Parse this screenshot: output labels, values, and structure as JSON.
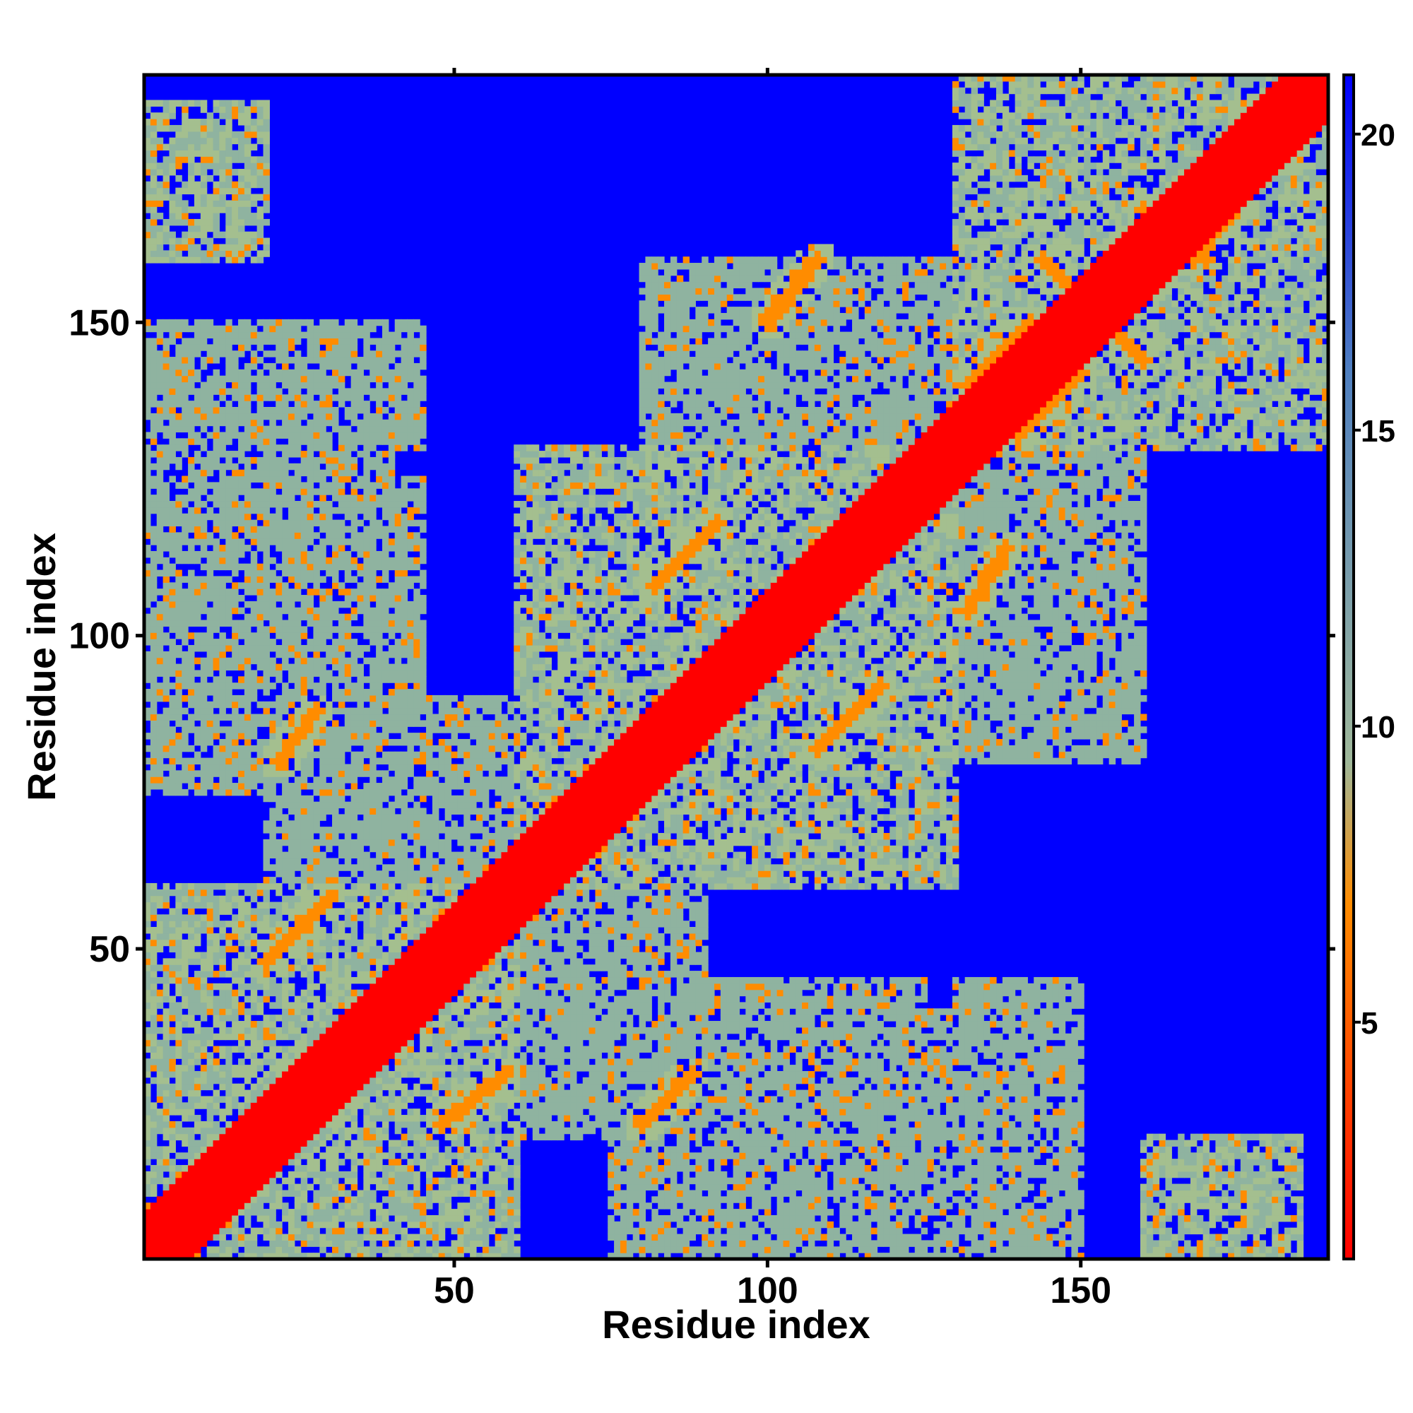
{
  "chart_data": {
    "type": "heatmap",
    "title": "",
    "xlabel": "Residue index",
    "ylabel": "Residue index",
    "x_range": [
      1,
      189
    ],
    "y_range": [
      1,
      189
    ],
    "x_ticks": [
      50,
      100,
      150
    ],
    "y_ticks": [
      50,
      100,
      150
    ],
    "colorbar": {
      "range": [
        1,
        21
      ],
      "ticks": [
        5,
        10,
        15,
        20
      ],
      "colors": [
        "#ff0000",
        "#ff8c00",
        "#9fb89a",
        "#4f7fbf",
        "#0000ff"
      ]
    },
    "cell_color_map": [
      {
        "max": 3,
        "color": "#ff0000"
      },
      {
        "max": 8,
        "color": "#ff8c00"
      },
      {
        "max": 12.5,
        "color": "#a4bf8f"
      },
      {
        "max": 14.5,
        "color": "#8fb3a0"
      },
      {
        "max": 21,
        "color": "#0000ff"
      }
    ],
    "domains": [
      [
        1,
        65
      ],
      [
        66,
        128
      ],
      [
        129,
        189
      ]
    ],
    "regions": [
      {
        "x": [
          1,
          60
        ],
        "y": [
          1,
          60
        ],
        "level": 2
      },
      {
        "x": [
          60,
          130
        ],
        "y": [
          60,
          130
        ],
        "level": 2
      },
      {
        "x": [
          130,
          189
        ],
        "y": [
          130,
          189
        ],
        "level": 2
      },
      {
        "x": [
          1,
          45
        ],
        "y": [
          75,
          125
        ],
        "level": 3
      },
      {
        "x": [
          1,
          45
        ],
        "y": [
          130,
          150
        ],
        "level": 3
      },
      {
        "x": [
          1,
          20
        ],
        "y": [
          165,
          185
        ],
        "level": 2
      },
      {
        "x": [
          50,
          90
        ],
        "y": [
          20,
          70
        ],
        "level": 3
      },
      {
        "x": [
          85,
          130
        ],
        "y": [
          60,
          100
        ],
        "level": 3
      },
      {
        "x": [
          100,
          140
        ],
        "y": [
          80,
          140
        ],
        "level": 3
      },
      {
        "x": [
          130,
          160
        ],
        "y": [
          110,
          150
        ],
        "level": 3
      },
      {
        "x": [
          105,
          130
        ],
        "y": [
          1,
          40
        ],
        "level": 3
      },
      {
        "x": [
          130,
          150
        ],
        "y": [
          1,
          40
        ],
        "level": 3
      },
      {
        "x": [
          160,
          180
        ],
        "y": [
          1,
          20
        ],
        "level": 2
      },
      {
        "x": [
          80,
          120
        ],
        "y": [
          120,
          160
        ],
        "level": 3
      }
    ],
    "contact_strands": [
      {
        "from": [
          20,
          48
        ],
        "to": [
          30,
          58
        ]
      },
      {
        "from": [
          48,
          22
        ],
        "to": [
          58,
          30
        ]
      },
      {
        "from": [
          80,
          22
        ],
        "to": [
          88,
          30
        ]
      },
      {
        "from": [
          22,
          80
        ],
        "to": [
          28,
          88
        ]
      },
      {
        "from": [
          108,
          82
        ],
        "to": [
          118,
          92
        ]
      },
      {
        "from": [
          82,
          108
        ],
        "to": [
          92,
          118
        ]
      },
      {
        "from": [
          132,
          104
        ],
        "to": [
          138,
          114
        ]
      },
      {
        "from": [
          140,
          132
        ],
        "to": [
          150,
          142
        ]
      },
      {
        "from": [
          132,
          140
        ],
        "to": [
          142,
          150
        ]
      },
      {
        "from": [
          152,
          152
        ],
        "to": [
          160,
          144
        ]
      },
      {
        "from": [
          144,
          160
        ],
        "to": [
          152,
          152
        ]
      },
      {
        "from": [
          160,
          168
        ],
        "to": [
          170,
          160
        ]
      },
      {
        "from": [
          168,
          160
        ],
        "to": [
          176,
          170
        ]
      },
      {
        "from": [
          100,
          150
        ],
        "to": [
          108,
          160
        ]
      }
    ]
  }
}
